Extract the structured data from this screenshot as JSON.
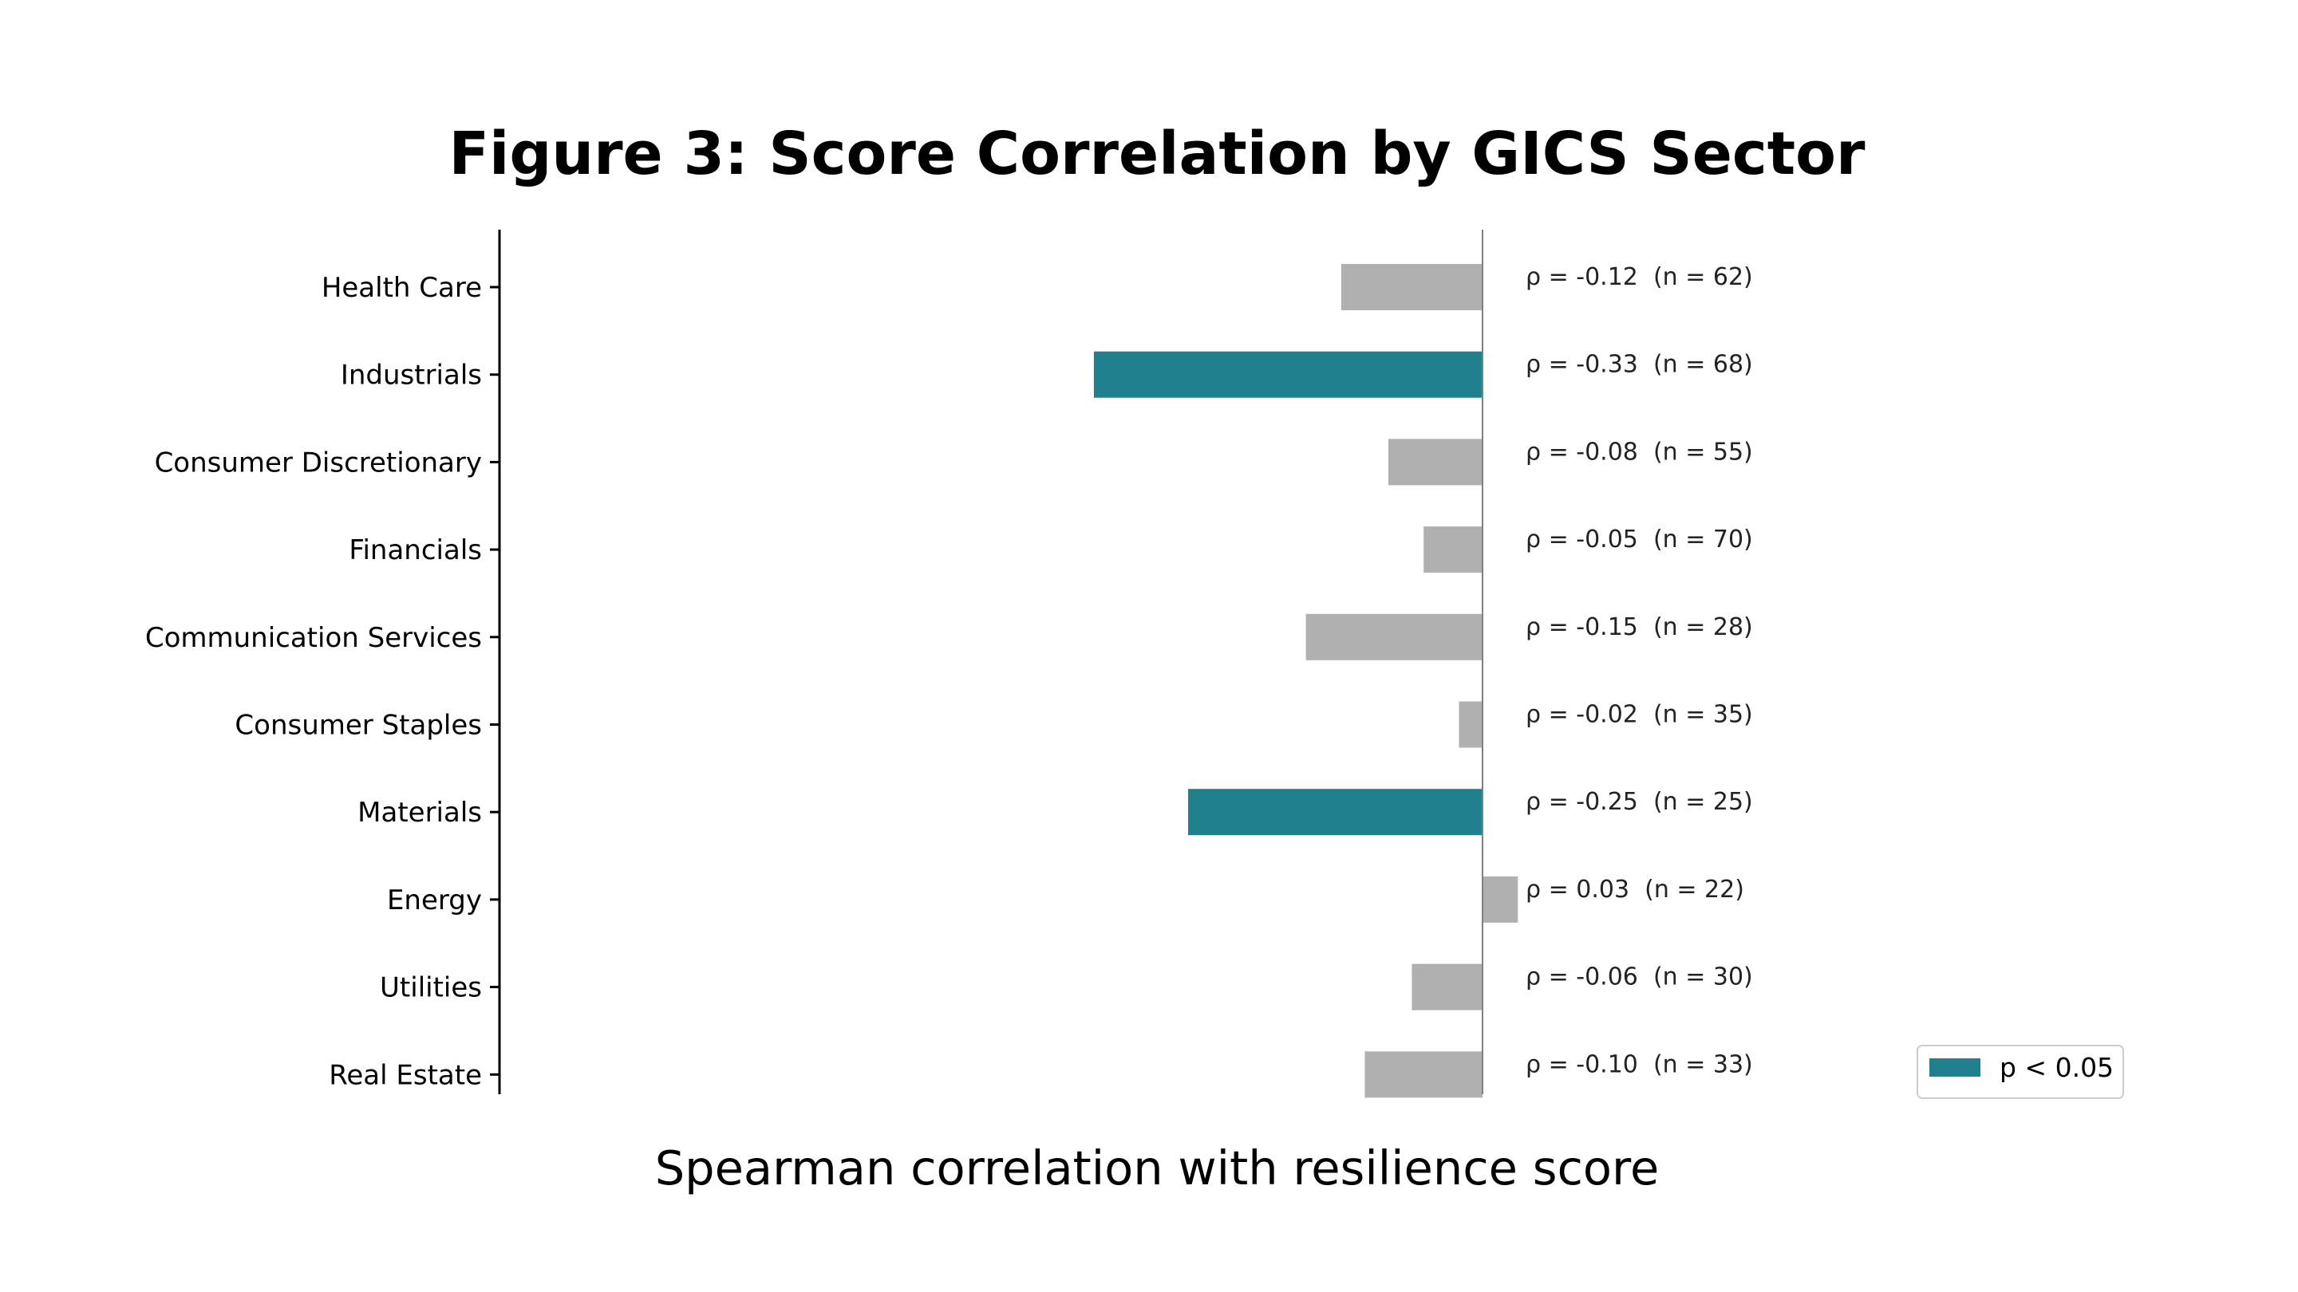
{
  "chart_data": {
    "type": "bar",
    "orientation": "horizontal",
    "title": "Figure 3: Score Correlation by GICS Sector",
    "xlabel": "Spearman correlation with resilience score",
    "ylabel": "",
    "xlim": [
      -0.6,
      0.6
    ],
    "grid": false,
    "categories": [
      "Health Care",
      "Industrials",
      "Consumer Discretionary",
      "Financials",
      "Communication Services",
      "Consumer Staples",
      "Materials",
      "Energy",
      "Utilities",
      "Real Estate"
    ],
    "values": [
      -0.12,
      -0.33,
      -0.08,
      -0.05,
      -0.15,
      -0.02,
      -0.25,
      0.03,
      -0.06,
      -0.1
    ],
    "n": [
      62,
      68,
      55,
      70,
      28,
      35,
      25,
      22,
      30,
      33
    ],
    "significant": [
      false,
      true,
      false,
      false,
      false,
      false,
      true,
      false,
      false,
      false
    ],
    "data_labels": [
      "ρ = -0.12  (n = 62)",
      "ρ = -0.33  (n = 68)",
      "ρ = -0.08  (n = 55)",
      "ρ = -0.05  (n = 70)",
      "ρ = -0.15  (n = 28)",
      "ρ = -0.02  (n = 35)",
      "ρ = -0.25  (n = 25)",
      "ρ = 0.03  (n = 22)",
      "ρ = -0.06  (n = 30)",
      "ρ = -0.10  (n = 33)"
    ],
    "legend": {
      "placement": "bottom-right",
      "entries": [
        {
          "label": "p < 0.05",
          "color": "#21808d"
        }
      ]
    },
    "colors": {
      "significant": "#21808d",
      "not_significant": "#b0b0b0",
      "zero_line": "#808080",
      "axis": "#000000"
    }
  }
}
